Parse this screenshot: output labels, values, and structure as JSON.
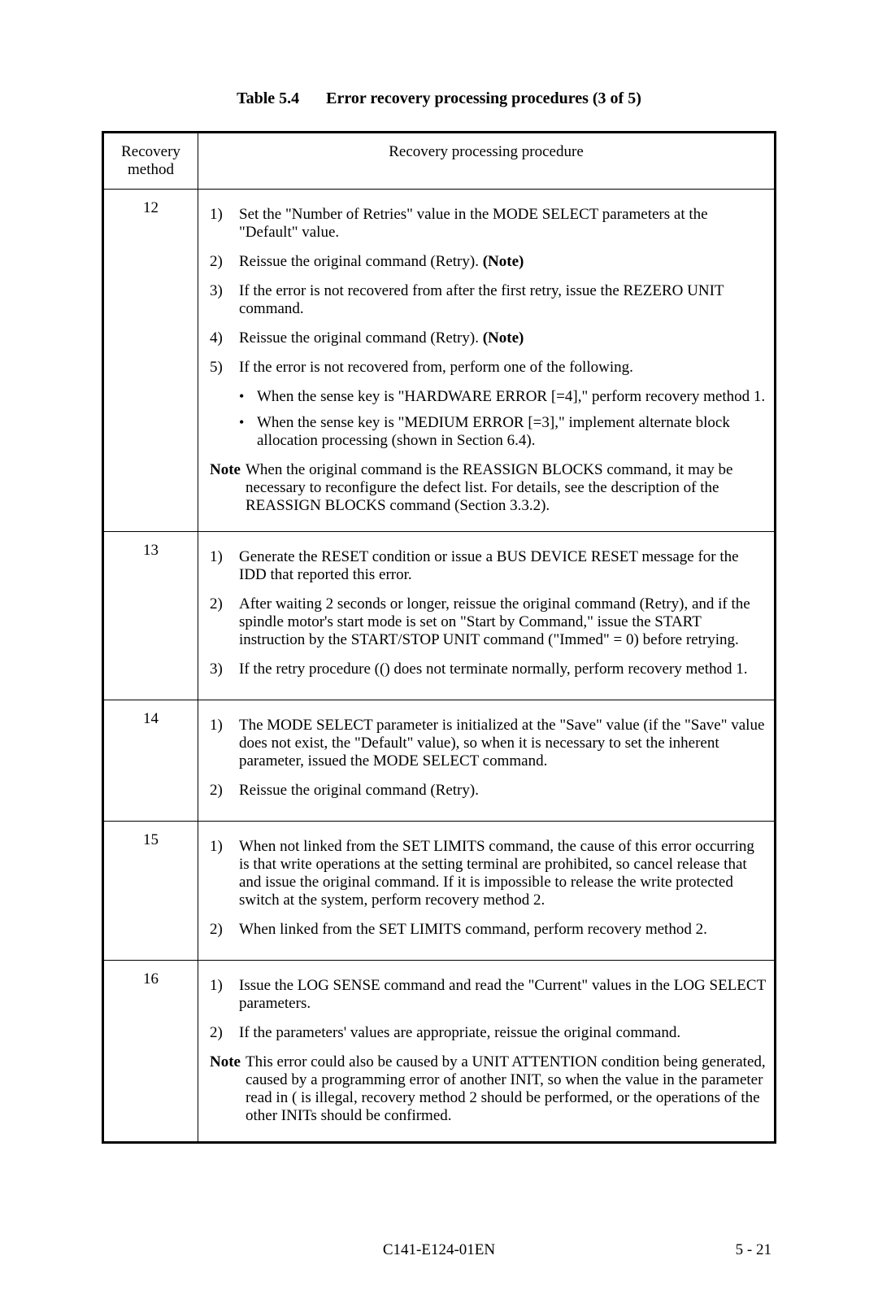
{
  "caption": {
    "label": "Table 5.4",
    "title": "Error recovery processing procedures  (3 of 5)"
  },
  "headers": {
    "col1": "Recovery method",
    "col2": "Recovery processing procedure"
  },
  "rows": [
    {
      "method": "12",
      "steps": [
        {
          "n": "1)",
          "t": "Set the \"Number of Retries\" value in the MODE SELECT parameters at the \"Default\" value."
        },
        {
          "n": "2)",
          "t": "Reissue the original command (Retry).  (Note)",
          "bold_note": true
        },
        {
          "n": "3)",
          "t": "If the error is not recovered from after the first retry, issue the REZERO UNIT command."
        },
        {
          "n": "4)",
          "t": "Reissue the original command (Retry).  (Note)",
          "bold_note": true
        },
        {
          "n": "5)",
          "t": "If the error is not recovered from, perform one of the following."
        }
      ],
      "bullets": [
        "When the sense key is \"HARDWARE ERROR [=4],\" perform recovery method 1.",
        "When the sense key is \"MEDIUM ERROR [=3],\" implement alternate block allocation processing (shown in Section 6.4)."
      ],
      "note": "When the original command is the REASSIGN BLOCKS command, it may be necessary to reconfigure the defect list.  For details, see the description of the REASSIGN BLOCKS command (Section 3.3.2)."
    },
    {
      "method": "13",
      "steps": [
        {
          "n": "1)",
          "t": "Generate the RESET condition or issue a BUS DEVICE RESET message for the IDD that reported this error."
        },
        {
          "n": "2)",
          "t": "After waiting 2 seconds or longer, reissue the original command (Retry), and if the spindle motor's start mode is set on \"Start by Command,\" issue the START instruction by the START/STOP UNIT command (\"Immed\" = 0) before retrying."
        },
        {
          "n": "3)",
          "t": "If the retry procedure (() does not terminate normally, perform recovery method 1."
        }
      ]
    },
    {
      "method": "14",
      "steps": [
        {
          "n": "1)",
          "t": "The MODE SELECT parameter is initialized at the \"Save\" value (if the \"Save\" value does not exist, the \"Default\" value), so when it is necessary to set the inherent parameter, issued the MODE SELECT command."
        },
        {
          "n": "2)",
          "t": "Reissue the original command (Retry)."
        }
      ]
    },
    {
      "method": "15",
      "steps": [
        {
          "n": "1)",
          "t": "When not linked from the SET LIMITS command, the cause of this error occurring is that write operations at the setting terminal are prohibited, so cancel release that and issue the original command.  If it is impossible to release the write protected switch at the system, perform recovery method 2."
        },
        {
          "n": "2)",
          "t": "When linked from the SET LIMITS command, perform recovery method 2."
        }
      ]
    },
    {
      "method": "16",
      "steps": [
        {
          "n": "1)",
          "t": "Issue the LOG SENSE command and read the \"Current\" values in the LOG SELECT parameters."
        },
        {
          "n": "2)",
          "t": "If the parameters' values are appropriate, reissue the original command."
        }
      ],
      "note": "This error could also be caused by a UNIT ATTENTION condition being generated, caused by a programming error of another INIT, so when the value in the parameter read in ( is illegal, recovery method 2 should be performed, or the operations of the other INITs should be confirmed."
    }
  ],
  "footer": {
    "center": "C141-E124-01EN",
    "right": "5 - 21"
  },
  "note_label": "Note"
}
